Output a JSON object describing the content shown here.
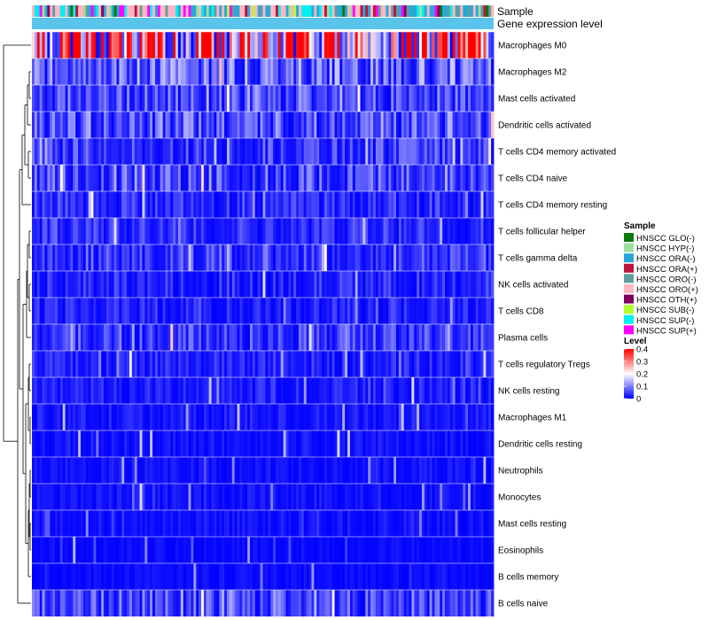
{
  "chart_data": {
    "type": "heatmap",
    "annotation_track_label": "Sample",
    "expression_track_label": "Gene expression level",
    "row_labels": [
      "Macrophages M0",
      "Macrophages M2",
      "Mast cells activated",
      "Dendritic cells activated",
      "T cells CD4 memory activated",
      "T cells CD4 naive",
      "T cells CD4 memory resting",
      "T cells follicular helper",
      "T cells gamma delta",
      "NK cells activated",
      "T cells CD8",
      "Plasma cells",
      "T cells regulatory  Tregs",
      "NK cells resting",
      "Macrophages M1",
      "Dendritic cells resting",
      "Neutrophils",
      "Monocytes",
      "Mast cells resting",
      "Eosinophils",
      "B cells memory",
      "B cells naive"
    ],
    "row_mean_levels": [
      0.3,
      0.08,
      0.06,
      0.07,
      0.05,
      0.06,
      0.04,
      0.04,
      0.05,
      0.035,
      0.03,
      0.05,
      0.03,
      0.025,
      0.02,
      0.015,
      0.015,
      0.015,
      0.015,
      0.01,
      0.01,
      0.06
    ],
    "n_samples": 180,
    "sample_legend": {
      "title": "Sample",
      "entries": [
        {
          "label": "HNSCC GLO(-)",
          "color": "#0a7a0a"
        },
        {
          "label": "HNSCC HYP(-)",
          "color": "#9ddf9d"
        },
        {
          "label": "HNSCC ORA(-)",
          "color": "#29a8d8"
        },
        {
          "label": "HNSCC ORA(+)",
          "color": "#c0143c"
        },
        {
          "label": "HNSCC ORO(-)",
          "color": "#5f9ea0"
        },
        {
          "label": "HNSCC ORO(+)",
          "color": "#ffb6c1"
        },
        {
          "label": "HNSCC OTH(+)",
          "color": "#800060"
        },
        {
          "label": "HNSCC SUB(-)",
          "color": "#adff2f"
        },
        {
          "label": "HNSCC SUP(-)",
          "color": "#00f0f0"
        },
        {
          "label": "HNSCC SUP(+)",
          "color": "#ff00ff"
        }
      ]
    },
    "level_legend": {
      "title": "Level",
      "ticks": [
        "0.4",
        "0.3",
        "0.2",
        "0.1",
        "0"
      ],
      "tick_values": [
        0.4,
        0.3,
        0.2,
        0.1,
        0
      ],
      "range": [
        0,
        0.4
      ],
      "colors": {
        "low": "#0000ff",
        "mid": "#ffffff",
        "high": "#ff0000"
      }
    },
    "expression_track_color": "#5bc4ea"
  }
}
